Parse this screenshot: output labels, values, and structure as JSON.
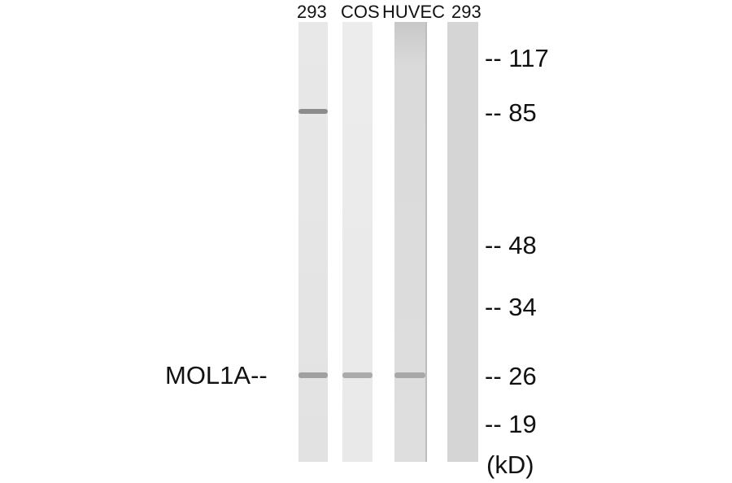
{
  "lanes": [
    {
      "label": "293",
      "color": "#e6e6e6"
    },
    {
      "label": "COS",
      "color": "#ececec"
    },
    {
      "label": "HUVEC",
      "color": "#dcdcdc"
    },
    {
      "label": "293",
      "color": "#d6d6d6"
    }
  ],
  "markers": [
    {
      "label": "-- 117",
      "kd": 117
    },
    {
      "label": "-- 85",
      "kd": 85
    },
    {
      "label": "-- 48",
      "kd": 48
    },
    {
      "label": "-- 34",
      "kd": 34
    },
    {
      "label": "-- 26",
      "kd": 26
    },
    {
      "label": "-- 19",
      "kd": 19
    }
  ],
  "unit": "(kD)",
  "protein_label": "MOL1A--",
  "band_color": "#9a9a9a"
}
